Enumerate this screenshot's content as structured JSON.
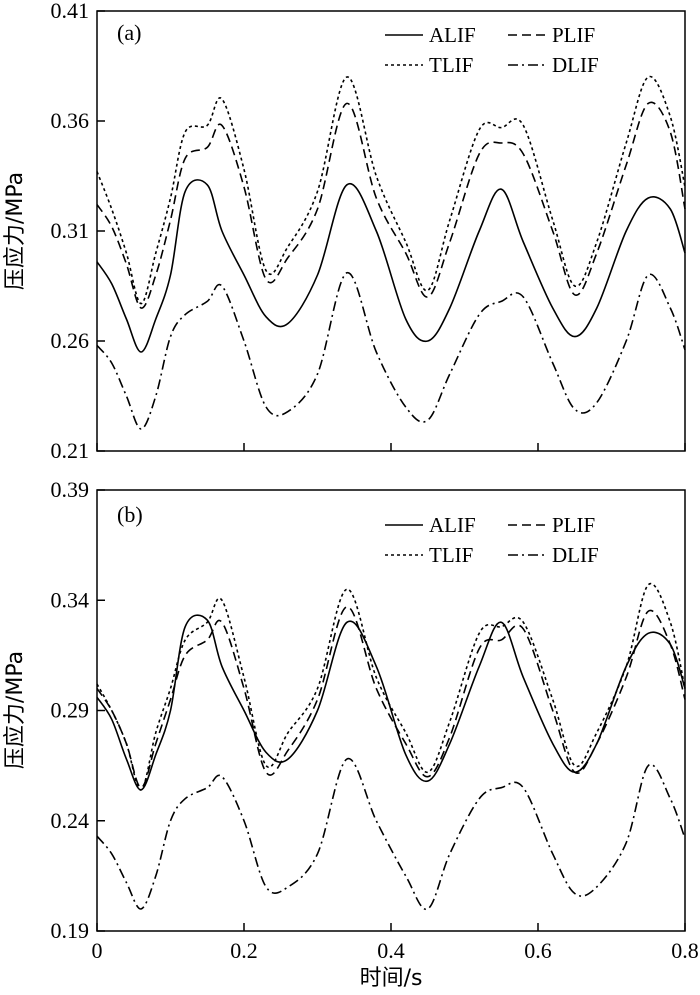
{
  "chart_data": [
    {
      "type": "line",
      "panel": "(a)",
      "title": "",
      "xlabel": "",
      "ylabel": "压应力/MPa",
      "xlim": [
        0,
        0.8
      ],
      "ylim": [
        0.21,
        0.41
      ],
      "yticks": [
        "0.21",
        "0.26",
        "0.31",
        "0.36",
        "0.41"
      ],
      "xticks": [],
      "legend": "top-right",
      "grid": false,
      "series": [
        {
          "name": "ALIF",
          "style": "solid",
          "x": [
            0,
            0.02,
            0.04,
            0.06,
            0.08,
            0.1,
            0.12,
            0.15,
            0.17,
            0.2,
            0.23,
            0.26,
            0.3,
            0.34,
            0.38,
            0.42,
            0.45,
            0.48,
            0.52,
            0.55,
            0.58,
            0.62,
            0.65,
            0.68,
            0.72,
            0.75,
            0.78,
            0.8
          ],
          "y": [
            0.296,
            0.286,
            0.27,
            0.255,
            0.27,
            0.29,
            0.328,
            0.331,
            0.31,
            0.29,
            0.271,
            0.268,
            0.29,
            0.331,
            0.31,
            0.27,
            0.26,
            0.275,
            0.31,
            0.329,
            0.305,
            0.275,
            0.262,
            0.275,
            0.31,
            0.325,
            0.32,
            0.3
          ]
        },
        {
          "name": "PLIF",
          "style": "dashed",
          "x": [
            0,
            0.02,
            0.04,
            0.06,
            0.08,
            0.1,
            0.12,
            0.15,
            0.17,
            0.2,
            0.23,
            0.26,
            0.3,
            0.34,
            0.38,
            0.42,
            0.45,
            0.48,
            0.52,
            0.55,
            0.58,
            0.62,
            0.65,
            0.68,
            0.72,
            0.75,
            0.78,
            0.8
          ],
          "y": [
            0.322,
            0.312,
            0.295,
            0.275,
            0.29,
            0.315,
            0.343,
            0.348,
            0.358,
            0.33,
            0.288,
            0.298,
            0.32,
            0.368,
            0.325,
            0.3,
            0.28,
            0.305,
            0.345,
            0.35,
            0.345,
            0.31,
            0.281,
            0.3,
            0.34,
            0.368,
            0.355,
            0.32
          ]
        },
        {
          "name": "TLIF",
          "style": "dotted",
          "x": [
            0,
            0.02,
            0.04,
            0.06,
            0.08,
            0.1,
            0.12,
            0.15,
            0.17,
            0.2,
            0.23,
            0.26,
            0.3,
            0.34,
            0.38,
            0.42,
            0.45,
            0.48,
            0.52,
            0.55,
            0.58,
            0.62,
            0.65,
            0.68,
            0.72,
            0.75,
            0.78,
            0.8
          ],
          "y": [
            0.337,
            0.32,
            0.3,
            0.277,
            0.3,
            0.325,
            0.355,
            0.358,
            0.37,
            0.338,
            0.292,
            0.303,
            0.328,
            0.38,
            0.335,
            0.305,
            0.283,
            0.315,
            0.356,
            0.357,
            0.358,
            0.315,
            0.285,
            0.305,
            0.35,
            0.38,
            0.362,
            0.33
          ]
        },
        {
          "name": "DLIF",
          "style": "dashdot",
          "x": [
            0,
            0.02,
            0.04,
            0.06,
            0.08,
            0.1,
            0.12,
            0.15,
            0.17,
            0.2,
            0.23,
            0.26,
            0.3,
            0.34,
            0.38,
            0.42,
            0.45,
            0.48,
            0.52,
            0.55,
            0.58,
            0.62,
            0.65,
            0.68,
            0.72,
            0.75,
            0.78,
            0.8
          ],
          "y": [
            0.258,
            0.25,
            0.235,
            0.22,
            0.235,
            0.262,
            0.272,
            0.278,
            0.285,
            0.26,
            0.23,
            0.228,
            0.245,
            0.291,
            0.255,
            0.23,
            0.224,
            0.245,
            0.272,
            0.278,
            0.28,
            0.25,
            0.229,
            0.232,
            0.26,
            0.29,
            0.275,
            0.256
          ]
        }
      ]
    },
    {
      "type": "line",
      "panel": "(b)",
      "title": "",
      "xlabel": "时间/s",
      "ylabel": "压应力/MPa",
      "xlim": [
        0,
        0.8
      ],
      "ylim": [
        0.19,
        0.39
      ],
      "yticks": [
        "0.19",
        "0.24",
        "0.29",
        "0.34",
        "0.39"
      ],
      "xticks": [
        "0",
        "0.2",
        "0.4",
        "0.6",
        "0.8"
      ],
      "legend": "top-right",
      "grid": false,
      "series": [
        {
          "name": "ALIF",
          "style": "solid",
          "x": [
            0,
            0.02,
            0.04,
            0.06,
            0.08,
            0.1,
            0.12,
            0.15,
            0.17,
            0.2,
            0.23,
            0.26,
            0.3,
            0.34,
            0.38,
            0.42,
            0.45,
            0.48,
            0.52,
            0.55,
            0.58,
            0.62,
            0.65,
            0.68,
            0.72,
            0.75,
            0.78,
            0.8
          ],
          "y": [
            0.296,
            0.286,
            0.268,
            0.254,
            0.27,
            0.29,
            0.328,
            0.331,
            0.31,
            0.29,
            0.271,
            0.268,
            0.29,
            0.33,
            0.31,
            0.27,
            0.258,
            0.275,
            0.31,
            0.33,
            0.305,
            0.275,
            0.262,
            0.275,
            0.31,
            0.325,
            0.32,
            0.3
          ]
        },
        {
          "name": "PLIF",
          "style": "dashed",
          "x": [
            0,
            0.02,
            0.04,
            0.06,
            0.08,
            0.1,
            0.12,
            0.15,
            0.17,
            0.2,
            0.23,
            0.26,
            0.3,
            0.34,
            0.38,
            0.42,
            0.45,
            0.48,
            0.52,
            0.55,
            0.58,
            0.62,
            0.65,
            0.68,
            0.72,
            0.75,
            0.78,
            0.8
          ],
          "y": [
            0.3,
            0.29,
            0.275,
            0.255,
            0.275,
            0.295,
            0.315,
            0.322,
            0.33,
            0.3,
            0.262,
            0.272,
            0.295,
            0.337,
            0.3,
            0.275,
            0.26,
            0.278,
            0.318,
            0.322,
            0.327,
            0.29,
            0.262,
            0.275,
            0.305,
            0.335,
            0.32,
            0.295
          ]
        },
        {
          "name": "TLIF",
          "style": "dotted",
          "x": [
            0,
            0.02,
            0.04,
            0.06,
            0.08,
            0.1,
            0.12,
            0.15,
            0.17,
            0.2,
            0.23,
            0.26,
            0.3,
            0.34,
            0.38,
            0.42,
            0.45,
            0.48,
            0.52,
            0.55,
            0.58,
            0.62,
            0.65,
            0.68,
            0.72,
            0.75,
            0.78,
            0.8
          ],
          "y": [
            0.302,
            0.29,
            0.275,
            0.254,
            0.28,
            0.3,
            0.322,
            0.33,
            0.34,
            0.305,
            0.265,
            0.28,
            0.3,
            0.345,
            0.305,
            0.28,
            0.262,
            0.285,
            0.325,
            0.328,
            0.33,
            0.295,
            0.265,
            0.28,
            0.31,
            0.347,
            0.33,
            0.3
          ]
        },
        {
          "name": "DLIF",
          "style": "dashdot",
          "x": [
            0,
            0.02,
            0.04,
            0.06,
            0.08,
            0.1,
            0.12,
            0.15,
            0.17,
            0.2,
            0.23,
            0.26,
            0.3,
            0.34,
            0.38,
            0.42,
            0.45,
            0.48,
            0.52,
            0.55,
            0.58,
            0.62,
            0.65,
            0.68,
            0.72,
            0.75,
            0.78,
            0.8
          ],
          "y": [
            0.233,
            0.225,
            0.212,
            0.2,
            0.215,
            0.24,
            0.25,
            0.255,
            0.26,
            0.24,
            0.21,
            0.21,
            0.225,
            0.268,
            0.24,
            0.215,
            0.2,
            0.225,
            0.25,
            0.255,
            0.255,
            0.225,
            0.207,
            0.21,
            0.23,
            0.265,
            0.25,
            0.232
          ]
        }
      ]
    }
  ]
}
